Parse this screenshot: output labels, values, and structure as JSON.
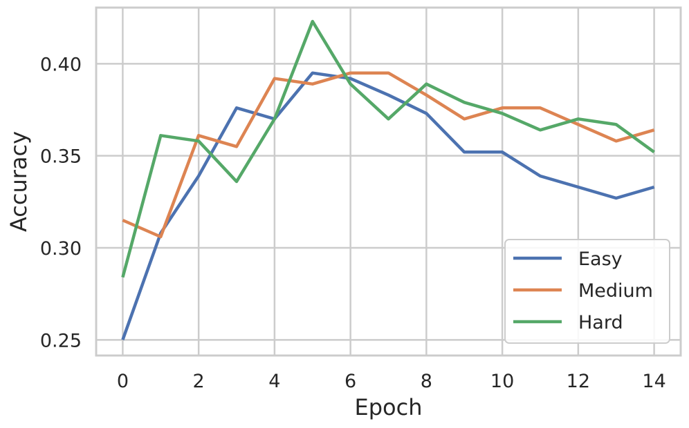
{
  "chart_data": {
    "type": "line",
    "xlabel": "Epoch",
    "ylabel": "Accuracy",
    "x": [
      0,
      1,
      2,
      3,
      4,
      5,
      6,
      7,
      8,
      9,
      10,
      11,
      12,
      13,
      14
    ],
    "xlim": [
      -0.7,
      14.7
    ],
    "ylim": [
      0.2415,
      0.4305
    ],
    "xticks": [
      0,
      2,
      4,
      6,
      8,
      10,
      12,
      14
    ],
    "yticks": [
      0.25,
      0.3,
      0.35,
      0.4
    ],
    "xtick_labels": [
      "0",
      "2",
      "4",
      "6",
      "8",
      "10",
      "12",
      "14"
    ],
    "ytick_labels": [
      "0.25",
      "0.30",
      "0.35",
      "0.40"
    ],
    "grid": true,
    "legend_position": "lower-right",
    "series": [
      {
        "name": "Easy",
        "color": "#4c72b0",
        "values": [
          0.25,
          0.308,
          0.339,
          0.376,
          0.37,
          0.395,
          0.392,
          0.383,
          0.373,
          0.352,
          0.352,
          0.339,
          0.333,
          0.327,
          0.333
        ]
      },
      {
        "name": "Medium",
        "color": "#dd8452",
        "values": [
          0.315,
          0.306,
          0.361,
          0.355,
          0.392,
          0.389,
          0.395,
          0.395,
          0.383,
          0.37,
          0.376,
          0.376,
          0.367,
          0.358,
          0.364
        ]
      },
      {
        "name": "Hard",
        "color": "#55a868",
        "values": [
          0.284,
          0.361,
          0.358,
          0.336,
          0.37,
          0.423,
          0.389,
          0.37,
          0.389,
          0.379,
          0.373,
          0.364,
          0.37,
          0.367,
          0.352
        ]
      }
    ]
  }
}
